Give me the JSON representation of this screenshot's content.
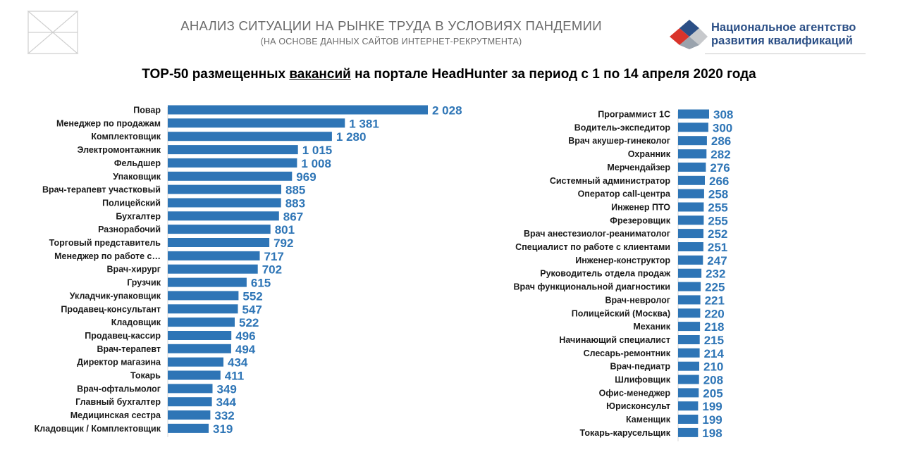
{
  "header": {
    "title": "АНАЛИЗ СИТУАЦИИ  НА РЫНКЕ ТРУДА В УСЛОВИЯХ ПАНДЕМИИ",
    "subtitle": "(НА ОСНОВЕ ДАННЫХ САЙТОВ ИНТЕРНЕТ-РЕКРУТМЕНТА)",
    "org_line1": "Национальное агентство",
    "org_line2": "развития квалификаций"
  },
  "main_title": {
    "before": "TOP-50 размещенных ",
    "underlined": "вакансий",
    "after": " на портале HeadHunter за период с 1 по 14 апреля 2020 года"
  },
  "colors": {
    "bar": "#2e75b6",
    "value_label": "#2e75b6",
    "logo_red": "#d9342b",
    "logo_blue": "#2b4f86"
  },
  "chart_data": [
    {
      "type": "bar",
      "orientation": "horizontal",
      "categories": [
        "Повар",
        "Менеджер по продажам",
        "Комплектовщик",
        "Электромонтажник",
        "Фельдшер",
        "Упаковщик",
        "Врач-терапевт участковый",
        "Полицейский",
        "Бухгалтер",
        "Разнорабочий",
        "Торговый представитель",
        "Менеджер по работе с…",
        "Врач-хирург",
        "Грузчик",
        "Укладчик-упаковщик",
        "Продавец-консультант",
        "Кладовщик",
        "Продавец-кассир",
        "Врач-терапевт",
        "Директор магазина",
        "Токарь",
        "Врач-офтальмолог",
        "Главный бухгалтер",
        "Медицинская сестра",
        "Кладовщик / Комплектовщик"
      ],
      "values": [
        2028,
        1381,
        1280,
        1015,
        1008,
        969,
        885,
        883,
        867,
        801,
        792,
        717,
        702,
        615,
        552,
        547,
        522,
        496,
        494,
        434,
        411,
        349,
        344,
        332,
        319
      ],
      "value_labels": [
        "2 028",
        "1 381",
        "1 280",
        "1 015",
        "1 008",
        "969",
        "885",
        "883",
        "867",
        "801",
        "792",
        "717",
        "702",
        "615",
        "552",
        "547",
        "522",
        "496",
        "494",
        "434",
        "411",
        "349",
        "344",
        "332",
        "319"
      ]
    },
    {
      "type": "bar",
      "orientation": "horizontal",
      "categories": [
        "Программист 1С",
        "Водитель-экспедитор",
        "Врач акушер-гинеколог",
        "Охранник",
        "Мерчендайзер",
        "Системный администратор",
        "Оператор call-центра",
        "Инженер ПТО",
        "Фрезеровщик",
        "Врач анестезиолог-реаниматолог",
        "Специалист по работе с клиентами",
        "Инженер-конструктор",
        "Руководитель отдела продаж",
        "Врач функциональной диагностики",
        "Врач-невролог",
        "Полицейский (Москва)",
        "Механик",
        "Начинающий специалист",
        "Слесарь-ремонтник",
        "Врач-педиатр",
        "Шлифовщик",
        "Офис-менеджер",
        "Юрисконсульт",
        "Каменщик",
        "Токарь-карусельщик"
      ],
      "values": [
        308,
        300,
        286,
        282,
        276,
        266,
        258,
        255,
        255,
        252,
        251,
        247,
        232,
        225,
        221,
        220,
        218,
        215,
        214,
        210,
        208,
        205,
        199,
        199,
        198
      ],
      "value_labels": [
        "308",
        "300",
        "286",
        "282",
        "276",
        "266",
        "258",
        "255",
        "255",
        "252",
        "251",
        "247",
        "232",
        "225",
        "221",
        "220",
        "218",
        "215",
        "214",
        "210",
        "208",
        "205",
        "199",
        "199",
        "198"
      ]
    }
  ]
}
